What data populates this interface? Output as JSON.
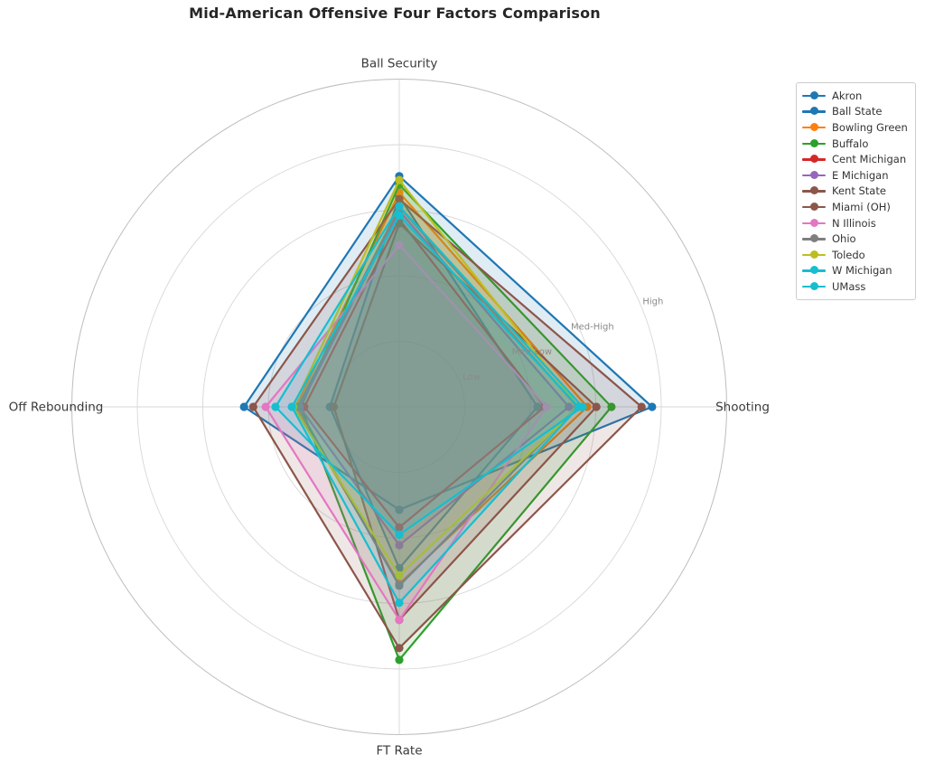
{
  "title": "Mid-American Offensive Four Factors Comparison",
  "chart_data": {
    "type": "radar",
    "categories": [
      "Ball Security",
      "Shooting",
      "FT Rate",
      "Off Rebounding"
    ],
    "category_angles_deg": [
      90,
      0,
      -90,
      180
    ],
    "radial_axis": {
      "tick_labels": [
        "Low",
        "Med-Low",
        "Med-High",
        "High"
      ],
      "tick_values": [
        1,
        2,
        3,
        4
      ],
      "max": 5,
      "tick_label_angle_deg": 22.5
    },
    "legend_position": "upper right",
    "grid": true,
    "series": [
      {
        "name": "Akron",
        "slug": "akron",
        "color": "#1f77b4",
        "values": [
          3.52,
          3.86,
          1.57,
          2.37
        ]
      },
      {
        "name": "Ball State",
        "slug": "ball-state",
        "color": "#1f77b4",
        "values": [
          3.21,
          2.11,
          2.46,
          1.06
        ]
      },
      {
        "name": "Bowling Green",
        "slug": "bowling-green",
        "color": "#ff7f0e",
        "values": [
          3.27,
          2.87,
          2.7,
          1.58
        ]
      },
      {
        "name": "Buffalo",
        "slug": "buffalo",
        "color": "#2ca02c",
        "values": [
          3.39,
          3.24,
          3.86,
          1.5
        ]
      },
      {
        "name": "Cent Michigan",
        "slug": "cent-michigan",
        "color": "#d62728",
        "values": [
          2.86,
          2.22,
          1.84,
          1.45
        ]
      },
      {
        "name": "E Michigan",
        "slug": "e-michigan",
        "color": "#9467bd",
        "values": [
          2.99,
          2.59,
          2.11,
          1.52
        ]
      },
      {
        "name": "Kent State",
        "slug": "kent-state",
        "color": "#8c564b",
        "values": [
          2.8,
          3.01,
          3.25,
          1.0
        ]
      },
      {
        "name": "Miami (OH)",
        "slug": "miami-oh",
        "color": "#8c564b",
        "values": [
          3.17,
          3.7,
          3.68,
          2.23
        ]
      },
      {
        "name": "N Illinois",
        "slug": "n-illinois",
        "color": "#e377c2",
        "values": [
          2.47,
          2.25,
          3.25,
          2.04
        ]
      },
      {
        "name": "Ohio",
        "slug": "ohio",
        "color": "#7f7f7f",
        "values": [
          3.05,
          2.72,
          2.73,
          1.55
        ]
      },
      {
        "name": "Toledo",
        "slug": "toledo",
        "color": "#bcbd22",
        "values": [
          3.46,
          2.74,
          2.57,
          1.62
        ]
      },
      {
        "name": "W Michigan",
        "slug": "w-michigan",
        "color": "#17becf",
        "values": [
          3.06,
          2.8,
          1.95,
          1.89
        ]
      },
      {
        "name": "UMass",
        "slug": "umass",
        "color": "#17becf",
        "values": [
          2.92,
          2.74,
          2.99,
          1.64
        ]
      }
    ],
    "style_colors": {
      "grid": "#d7d7d7",
      "outer_spine": "#bdbdbd",
      "tick_label": "#8a8a8a",
      "axis_label": "#3a3a3a",
      "title": "#262626",
      "fill_opacity": 0.14
    }
  }
}
